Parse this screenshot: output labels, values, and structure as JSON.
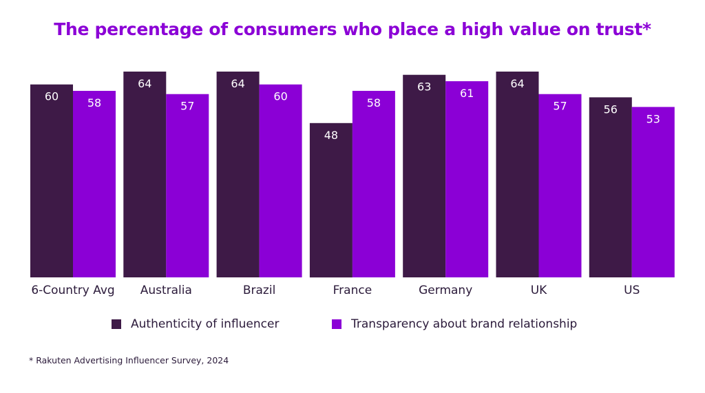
{
  "chart_data": {
    "type": "bar",
    "title": "The percentage of consumers who place a high value on trust*",
    "categories": [
      "6-Country Avg",
      "Australia",
      "Brazil",
      "France",
      "Germany",
      "UK",
      "US"
    ],
    "series": [
      {
        "name": "Authenticity of influencer",
        "color": "#3e1a47",
        "values": [
          60,
          64,
          64,
          48,
          63,
          64,
          56
        ]
      },
      {
        "name": "Transparency about brand relationship",
        "color": "#8b00d6",
        "values": [
          58,
          57,
          60,
          58,
          61,
          57,
          53
        ]
      }
    ],
    "xlabel": "",
    "ylabel": "",
    "ylim": [
      0,
      64
    ],
    "grid": false,
    "legend": "bottom",
    "footnote": "* Rakuten Advertising Influencer Survey, 2024"
  },
  "colors": {
    "title": "#8b00d6",
    "text": "#2b1a3a",
    "label": "#ffffff"
  }
}
